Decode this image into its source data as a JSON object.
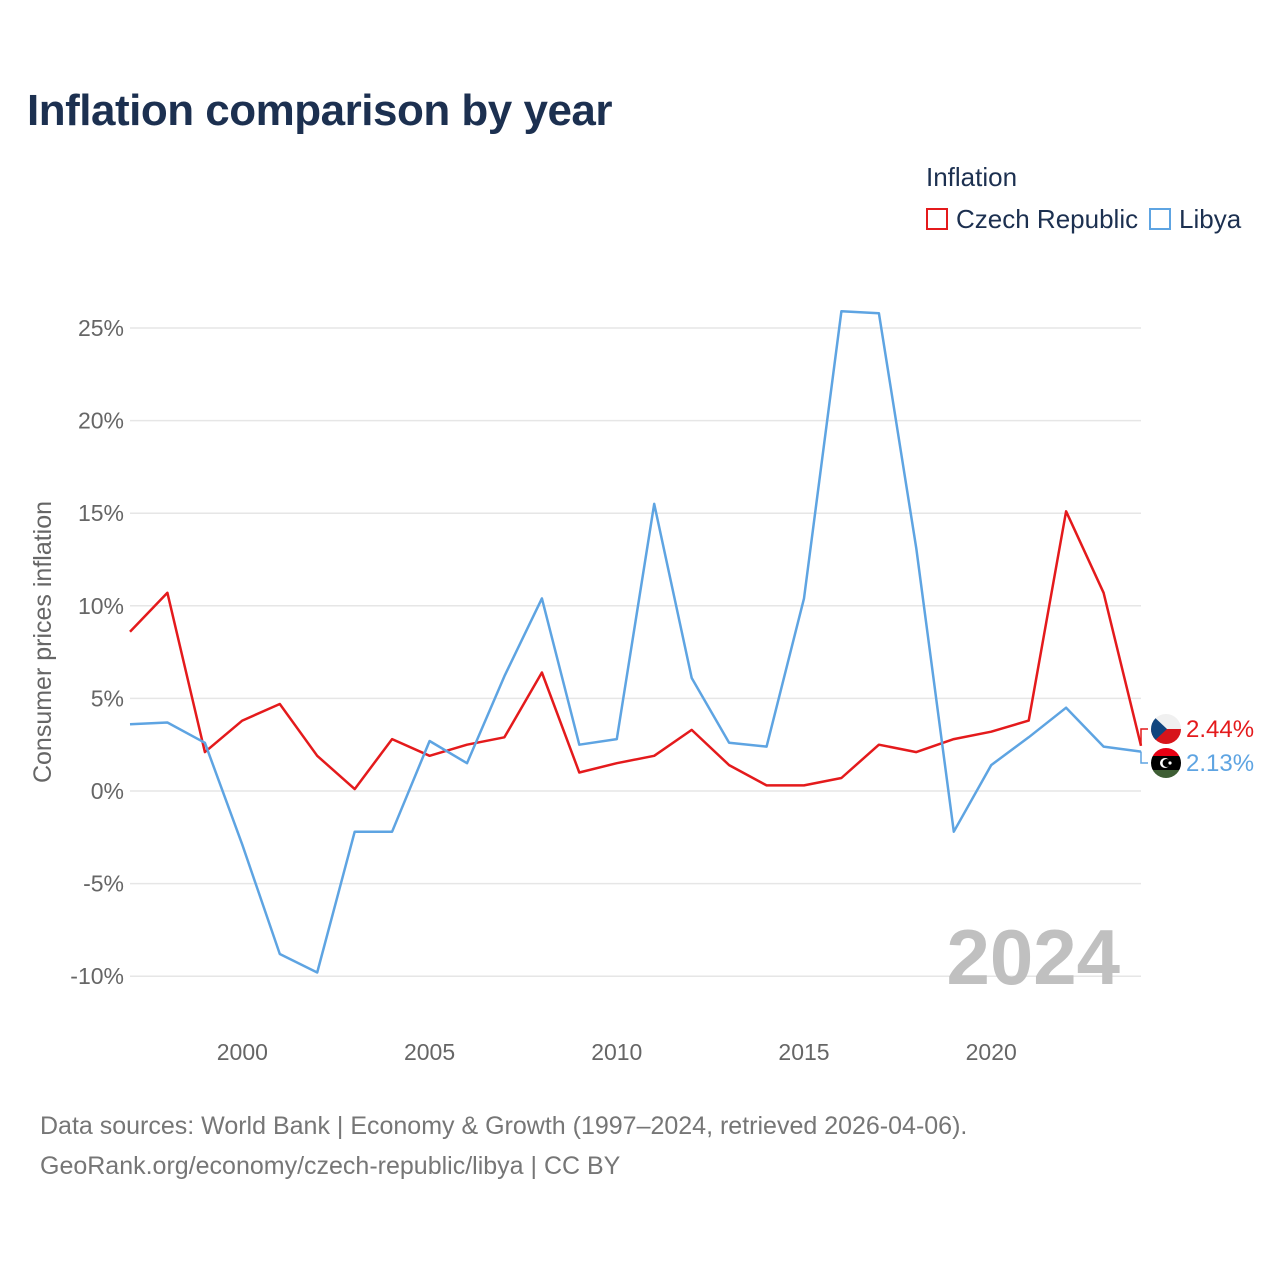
{
  "title": "Inflation comparison by year",
  "legend": {
    "title": "Inflation",
    "items": [
      {
        "label": "Czech Republic",
        "color": "#e41a1c"
      },
      {
        "label": "Libya",
        "color": "#5ea4e2"
      }
    ]
  },
  "current_year_label": "2024",
  "footer": {
    "line1": "Data sources: World Bank | Economy & Growth (1997–2024, retrieved 2026-04-06).",
    "line2": "GeoRank.org/economy/czech-republic/libya | CC BY"
  },
  "chart_data": {
    "type": "line",
    "title": "Inflation comparison by year",
    "xlabel": "",
    "ylabel": "Consumer prices inflation",
    "xlim": [
      1997,
      2024
    ],
    "ylim": [
      -12,
      28
    ],
    "x_ticks": [
      2000,
      2005,
      2010,
      2015,
      2020
    ],
    "x_tick_labels": [
      "2000",
      "2005",
      "2010",
      "2015",
      "2020"
    ],
    "y_ticks": [
      -10,
      -5,
      0,
      5,
      10,
      15,
      20,
      25
    ],
    "y_tick_labels": [
      "-10%",
      "-5%",
      "0%",
      "5%",
      "10%",
      "15%",
      "20%",
      "25%"
    ],
    "grid": true,
    "x": [
      1997,
      1998,
      1999,
      2000,
      2001,
      2002,
      2003,
      2004,
      2005,
      2006,
      2007,
      2008,
      2009,
      2010,
      2011,
      2012,
      2013,
      2014,
      2015,
      2016,
      2017,
      2018,
      2019,
      2020,
      2021,
      2022,
      2023,
      2024
    ],
    "series": [
      {
        "name": "Czech Republic",
        "color": "#e41a1c",
        "values": [
          8.6,
          10.7,
          2.1,
          3.8,
          4.7,
          1.9,
          0.1,
          2.8,
          1.9,
          2.5,
          2.9,
          6.4,
          1.0,
          1.5,
          1.9,
          3.3,
          1.4,
          0.3,
          0.3,
          0.7,
          2.5,
          2.1,
          2.8,
          3.2,
          3.8,
          15.1,
          10.7,
          2.44
        ],
        "end_label": "2.44%",
        "flag": "czech-flag"
      },
      {
        "name": "Libya",
        "color": "#5ea4e2",
        "values": [
          3.6,
          3.7,
          2.6,
          -2.9,
          -8.8,
          -9.8,
          -2.2,
          -2.2,
          2.7,
          1.5,
          6.2,
          10.4,
          2.5,
          2.8,
          15.5,
          6.1,
          2.6,
          2.4,
          10.4,
          25.9,
          25.8,
          13.1,
          -2.2,
          1.4,
          2.9,
          4.5,
          2.4,
          2.13
        ],
        "end_label": "2.13%",
        "flag": "libya-flag"
      }
    ]
  }
}
